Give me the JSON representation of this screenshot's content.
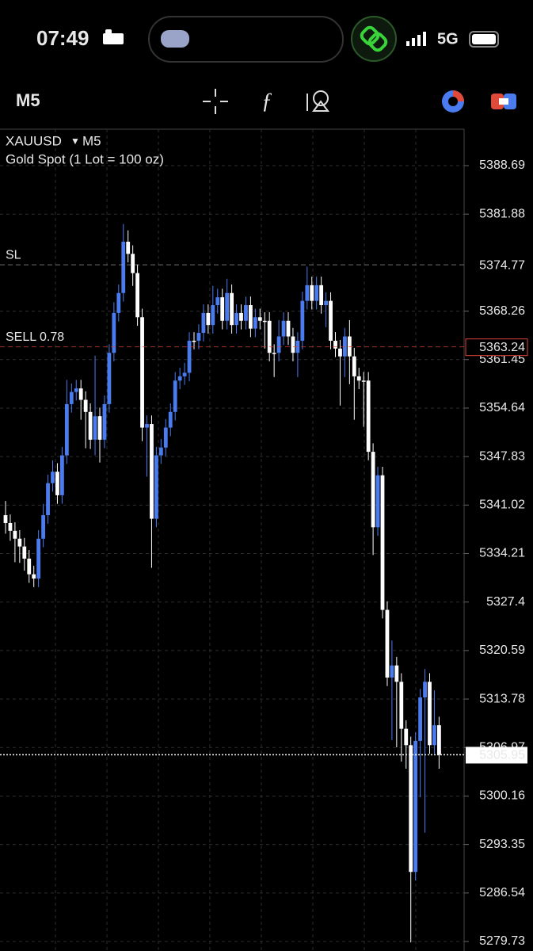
{
  "status_bar": {
    "time": "07:49",
    "network": "5G"
  },
  "toolbar": {
    "timeframe": "M5"
  },
  "chart_data": {
    "type": "candlestick",
    "symbol": "XAUUSD",
    "timeframe": "M5",
    "subtitle": "Gold Spot (1 Lot = 100 oz)",
    "bull_color": "#4a7cf0",
    "bear_color": "#ffffff",
    "grid": true,
    "ylim": [
      5279.73,
      5388.69
    ],
    "yticks": [
      5388.69,
      5381.88,
      5368.26,
      5361.45,
      5354.64,
      5347.83,
      5341.02,
      5334.21,
      5327.4,
      5320.59,
      5313.78,
      5306.97,
      5300.16,
      5293.35,
      5286.54,
      5279.73
    ],
    "price_lines": [
      {
        "name": "SL",
        "value": 5374.77,
        "color": "#a0a0a0"
      },
      {
        "name": "SELL 0.78",
        "value": 5363.24,
        "color": "#d9443a"
      },
      {
        "value": 5305.95,
        "color": "#ffffff"
      }
    ],
    "open": [
      5339.6,
      5338.5,
      5337.4,
      5336.3,
      5335.2,
      5333.5,
      5331.3,
      5330.7,
      5336.3,
      5339.6,
      5344.1,
      5345.7,
      5342.4,
      5348.0,
      5355.2,
      5356.9,
      5357.4,
      5355.8,
      5354.1,
      5350.2,
      5353.5,
      5350.2,
      5355.2,
      5362.4,
      5368.0,
      5370.8,
      5378.0,
      5376.3,
      5373.6,
      5367.4,
      5351.9,
      5352.4,
      5339.1,
      5348.0,
      5349.1,
      5351.9,
      5354.1,
      5358.5,
      5359.1,
      5359.6,
      5364.1,
      5364.1,
      5365.2,
      5368.0,
      5366.3,
      5369.1,
      5370.2,
      5366.9,
      5370.8,
      5366.3,
      5368.0,
      5366.9,
      5369.1,
      5365.8,
      5367.4,
      5366.9,
      5366.9,
      5362.4,
      5362.4,
      5364.7,
      5366.9,
      5364.7,
      5362.4,
      5364.1,
      5369.7,
      5371.9,
      5369.7,
      5371.9,
      5369.1,
      5369.7,
      5364.1,
      5363.0,
      5361.9,
      5364.7,
      5361.9,
      5359.1,
      5358.5,
      5358.5,
      5348.5,
      5337.9,
      5345.2,
      5326.3,
      5316.8,
      5318.5,
      5316.2,
      5309.6,
      5307.3,
      5289.5,
      5307.9,
      5314.0,
      5316.2,
      5307.3,
      5310.1
    ],
    "high": [
      5341.6,
      5339.7,
      5338.6,
      5337.5,
      5336.4,
      5334.7,
      5332.5,
      5337.5,
      5341.2,
      5345.3,
      5347.3,
      5346.9,
      5349.2,
      5358.6,
      5358.1,
      5358.6,
      5358.6,
      5357.0,
      5355.3,
      5362.0,
      5354.7,
      5356.4,
      5363.6,
      5369.5,
      5372.0,
      5380.5,
      5379.6,
      5377.5,
      5374.8,
      5368.6,
      5353.6,
      5353.6,
      5349.2,
      5350.3,
      5353.1,
      5355.3,
      5359.7,
      5360.3,
      5361.0,
      5365.3,
      5365.3,
      5366.4,
      5369.2,
      5369.2,
      5371.8,
      5371.4,
      5371.4,
      5372.8,
      5372.0,
      5369.2,
      5369.2,
      5370.3,
      5370.3,
      5368.6,
      5368.6,
      5368.1,
      5368.1,
      5363.6,
      5367.0,
      5368.1,
      5368.1,
      5365.9,
      5365.3,
      5371.0,
      5374.5,
      5373.1,
      5373.1,
      5373.1,
      5370.9,
      5370.9,
      5365.3,
      5364.2,
      5365.9,
      5367.0,
      5363.1,
      5360.3,
      5359.7,
      5359.7,
      5349.7,
      5346.4,
      5346.4,
      5327.5,
      5322.0,
      5319.7,
      5317.4,
      5310.8,
      5308.5,
      5309.1,
      5315.2,
      5318.0,
      5317.4,
      5315.0,
      5311.3
    ],
    "low": [
      5337.0,
      5336.0,
      5333.0,
      5332.9,
      5331.8,
      5330.1,
      5329.5,
      5329.5,
      5335.1,
      5338.4,
      5342.9,
      5341.2,
      5341.2,
      5346.8,
      5354.0,
      5355.7,
      5353.0,
      5349.0,
      5348.9,
      5348.0,
      5347.0,
      5349.0,
      5354.0,
      5361.2,
      5366.8,
      5369.6,
      5375.1,
      5371.8,
      5366.2,
      5350.0,
      5345.0,
      5332.2,
      5337.9,
      5346.8,
      5347.9,
      5350.7,
      5352.9,
      5357.3,
      5357.9,
      5358.4,
      5362.9,
      5362.9,
      5364.0,
      5365.1,
      5365.1,
      5367.9,
      5365.7,
      5365.7,
      5365.1,
      5365.1,
      5365.7,
      5365.7,
      5364.6,
      5364.6,
      5365.7,
      5363.0,
      5361.2,
      5359.0,
      5361.2,
      5363.5,
      5363.5,
      5361.2,
      5359.0,
      5362.9,
      5368.5,
      5368.5,
      5368.5,
      5367.9,
      5366.0,
      5362.9,
      5361.8,
      5355.0,
      5359.0,
      5358.0,
      5353.0,
      5357.3,
      5352.0,
      5347.3,
      5334.0,
      5336.7,
      5325.1,
      5315.6,
      5308.0,
      5307.0,
      5305.0,
      5304.0,
      5279.6,
      5288.3,
      5300.0,
      5295.0,
      5306.1,
      5306.1,
      5304.0
    ],
    "close": [
      5338.5,
      5337.4,
      5336.3,
      5335.2,
      5333.5,
      5331.3,
      5330.7,
      5336.3,
      5339.6,
      5344.1,
      5345.7,
      5342.4,
      5348.0,
      5355.2,
      5356.9,
      5357.4,
      5355.8,
      5354.1,
      5350.2,
      5353.5,
      5350.2,
      5355.2,
      5362.4,
      5368.0,
      5370.8,
      5378.0,
      5376.3,
      5373.6,
      5367.4,
      5351.9,
      5352.4,
      5339.1,
      5348.0,
      5349.1,
      5351.9,
      5354.1,
      5358.5,
      5359.1,
      5359.6,
      5364.1,
      5364.1,
      5365.2,
      5368.0,
      5366.3,
      5369.1,
      5370.2,
      5366.9,
      5370.8,
      5366.3,
      5368.0,
      5366.9,
      5369.1,
      5365.8,
      5367.4,
      5366.9,
      5366.9,
      5362.4,
      5362.4,
      5364.7,
      5366.9,
      5364.7,
      5362.4,
      5364.1,
      5369.7,
      5371.9,
      5369.7,
      5371.9,
      5369.1,
      5369.7,
      5364.1,
      5363.0,
      5361.9,
      5364.7,
      5361.9,
      5359.1,
      5358.5,
      5358.5,
      5348.5,
      5337.9,
      5345.2,
      5326.3,
      5316.8,
      5318.5,
      5316.2,
      5309.6,
      5307.3,
      5289.5,
      5307.9,
      5314.0,
      5316.2,
      5307.3,
      5310.1,
      5305.95
    ]
  }
}
